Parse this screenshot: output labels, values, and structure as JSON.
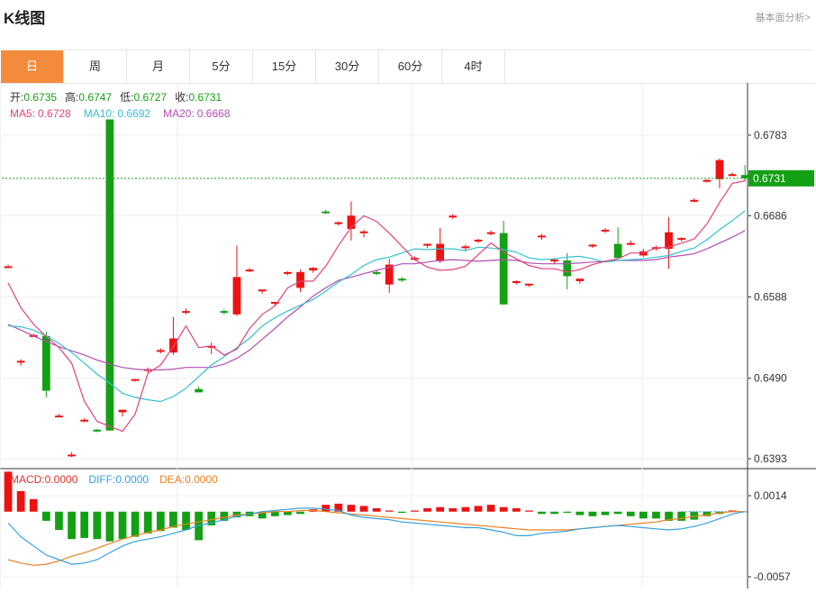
{
  "header": {
    "title": "K线图",
    "more_label": "基本面分析>"
  },
  "tabs": [
    {
      "label": "日",
      "active": true
    },
    {
      "label": "周",
      "active": false
    },
    {
      "label": "月",
      "active": false
    },
    {
      "label": "5分",
      "active": false
    },
    {
      "label": "15分",
      "active": false
    },
    {
      "label": "30分",
      "active": false
    },
    {
      "label": "60分",
      "active": false
    },
    {
      "label": "4时",
      "active": false
    }
  ],
  "chart_data": [
    {
      "type": "candlestick",
      "ohlc_labels": [
        {
          "label": "开:",
          "value": "0.6735"
        },
        {
          "label": "高:",
          "value": "0.6747"
        },
        {
          "label": "低:",
          "value": "0.6727"
        },
        {
          "label": "收:",
          "value": "0.6731"
        }
      ],
      "ma_labels": [
        {
          "label": "MA5:",
          "value": "0.6728",
          "color": "#e0457b"
        },
        {
          "label": "MA10:",
          "value": "0.6692",
          "color": "#35c0d0"
        },
        {
          "label": "MA20:",
          "value": "0.6668",
          "color": "#b34fb3"
        }
      ],
      "y_ticks": [
        "0.6783",
        "0.6686",
        "0.6588",
        "0.6490",
        "0.6393"
      ],
      "ylim": [
        0.6393,
        0.6783
      ],
      "last_price": "0.6731",
      "up_color": "#ee1111",
      "down_color": "#14a014",
      "candles": [
        [
          0.6625,
          0.6627,
          0.6623,
          0.6625
        ],
        [
          0.6509,
          0.6513,
          0.6505,
          0.6511
        ],
        [
          0.6542,
          0.6544,
          0.654,
          0.6542
        ],
        [
          0.6541,
          0.6546,
          0.6467,
          0.6475
        ],
        [
          0.6445,
          0.6447,
          0.6443,
          0.6445
        ],
        [
          0.6398,
          0.6401,
          0.6395,
          0.6398
        ],
        [
          0.644,
          0.6442,
          0.6437,
          0.644
        ],
        [
          0.6428,
          0.6429,
          0.6425,
          0.6427
        ],
        [
          0.6802,
          0.6802,
          0.6427,
          0.6427
        ],
        [
          0.6449,
          0.6452,
          0.6444,
          0.6452
        ],
        [
          0.6488,
          0.6489,
          0.6486,
          0.6489
        ],
        [
          0.6499,
          0.6503,
          0.6497,
          0.6501
        ],
        [
          0.6523,
          0.6526,
          0.652,
          0.6524
        ],
        [
          0.6521,
          0.6564,
          0.6518,
          0.6538
        ],
        [
          0.6571,
          0.6574,
          0.6567,
          0.6571
        ],
        [
          0.6477,
          0.648,
          0.6473,
          0.6473
        ],
        [
          0.6527,
          0.6533,
          0.6519,
          0.6529
        ],
        [
          0.6571,
          0.6573,
          0.6567,
          0.6569
        ],
        [
          0.6567,
          0.665,
          0.6565,
          0.6612
        ],
        [
          0.6621,
          0.6623,
          0.6618,
          0.6621
        ],
        [
          0.6595,
          0.6597,
          0.6592,
          0.6597
        ],
        [
          0.658,
          0.6582,
          0.6577,
          0.6582
        ],
        [
          0.6617,
          0.6619,
          0.6614,
          0.6618
        ],
        [
          0.6599,
          0.6621,
          0.6594,
          0.6618
        ],
        [
          0.662,
          0.6624,
          0.6617,
          0.6623
        ],
        [
          0.6691,
          0.6693,
          0.6688,
          0.669
        ],
        [
          0.6677,
          0.6679,
          0.6674,
          0.6678
        ],
        [
          0.667,
          0.6703,
          0.6656,
          0.6686
        ],
        [
          0.6667,
          0.6669,
          0.666,
          0.6667
        ],
        [
          0.6618,
          0.662,
          0.6614,
          0.6617
        ],
        [
          0.6603,
          0.6634,
          0.6593,
          0.6627
        ],
        [
          0.661,
          0.6612,
          0.6606,
          0.6609
        ],
        [
          0.6635,
          0.6637,
          0.6632,
          0.6635
        ],
        [
          0.665,
          0.6652,
          0.6647,
          0.6652
        ],
        [
          0.6631,
          0.6671,
          0.6629,
          0.6652
        ],
        [
          0.6686,
          0.6688,
          0.6682,
          0.6686
        ],
        [
          0.6649,
          0.6651,
          0.6643,
          0.6649
        ],
        [
          0.6656,
          0.6658,
          0.6653,
          0.6657
        ],
        [
          0.6665,
          0.6668,
          0.6662,
          0.6666
        ],
        [
          0.6665,
          0.668,
          0.6579,
          0.6579
        ],
        [
          0.6606,
          0.6608,
          0.6603,
          0.6607
        ],
        [
          0.6603,
          0.6604,
          0.66,
          0.6604
        ],
        [
          0.6661,
          0.6664,
          0.6657,
          0.6662
        ],
        [
          0.6633,
          0.6635,
          0.6628,
          0.6633
        ],
        [
          0.6632,
          0.6641,
          0.6597,
          0.6613
        ],
        [
          0.6607,
          0.661,
          0.6604,
          0.661
        ],
        [
          0.665,
          0.6652,
          0.6647,
          0.6651
        ],
        [
          0.6668,
          0.6671,
          0.6665,
          0.6669
        ],
        [
          0.6652,
          0.6672,
          0.6638,
          0.6635
        ],
        [
          0.6653,
          0.6656,
          0.665,
          0.6653
        ],
        [
          0.6638,
          0.6646,
          0.6636,
          0.6643
        ],
        [
          0.6647,
          0.665,
          0.6644,
          0.6648
        ],
        [
          0.6646,
          0.6684,
          0.6622,
          0.6666
        ],
        [
          0.6658,
          0.666,
          0.6655,
          0.6659
        ],
        [
          0.6705,
          0.6707,
          0.6702,
          0.6705
        ],
        [
          0.6728,
          0.673,
          0.6726,
          0.6729
        ],
        [
          0.673,
          0.6755,
          0.6719,
          0.6753
        ],
        [
          0.6736,
          0.6738,
          0.6734,
          0.6736
        ],
        [
          0.6735,
          0.6747,
          0.6727,
          0.6731
        ]
      ],
      "ma5": [
        0.6605,
        0.6575,
        0.6555,
        0.654,
        0.6527,
        0.6508,
        0.6462,
        0.6438,
        0.6432,
        0.6426,
        0.6447,
        0.6496,
        0.6506,
        0.6528,
        0.6553,
        0.6527,
        0.6529,
        0.6518,
        0.6525,
        0.655,
        0.6567,
        0.6577,
        0.6599,
        0.6607,
        0.6607,
        0.6625,
        0.665,
        0.6672,
        0.6686,
        0.6679,
        0.6665,
        0.6649,
        0.6633,
        0.6624,
        0.662,
        0.6621,
        0.6625,
        0.6639,
        0.6653,
        0.6642,
        0.6634,
        0.6626,
        0.6622,
        0.6622,
        0.6618,
        0.6621,
        0.6627,
        0.6631,
        0.6634,
        0.6641,
        0.6641,
        0.6647,
        0.6648,
        0.6653,
        0.6658,
        0.6676,
        0.6702,
        0.6725,
        0.6728
      ],
      "ma10": [
        0.6553,
        0.6552,
        0.6548,
        0.6541,
        0.6532,
        0.6521,
        0.6508,
        0.6495,
        0.6484,
        0.6472,
        0.6467,
        0.6464,
        0.6462,
        0.6468,
        0.6478,
        0.6492,
        0.6506,
        0.6516,
        0.6527,
        0.6538,
        0.6553,
        0.6563,
        0.6571,
        0.6578,
        0.6585,
        0.6595,
        0.6606,
        0.6615,
        0.6626,
        0.6633,
        0.6636,
        0.6641,
        0.6646,
        0.6645,
        0.6646,
        0.6646,
        0.6644,
        0.6648,
        0.6647,
        0.6645,
        0.6642,
        0.6635,
        0.6633,
        0.6634,
        0.6636,
        0.6637,
        0.6634,
        0.663,
        0.6632,
        0.6633,
        0.6634,
        0.6636,
        0.6638,
        0.6643,
        0.6647,
        0.6657,
        0.6669,
        0.668,
        0.6692
      ],
      "ma20": [
        0.6555,
        0.6548,
        0.6541,
        0.6534,
        0.6528,
        0.6523,
        0.6518,
        0.6512,
        0.6507,
        0.6503,
        0.6501,
        0.65,
        0.65,
        0.6501,
        0.6503,
        0.6503,
        0.6503,
        0.6507,
        0.6514,
        0.6524,
        0.6537,
        0.655,
        0.6564,
        0.6576,
        0.6589,
        0.6599,
        0.6608,
        0.6612,
        0.6616,
        0.662,
        0.6624,
        0.6628,
        0.6628,
        0.663,
        0.6632,
        0.6633,
        0.6632,
        0.6631,
        0.6632,
        0.6633,
        0.6632,
        0.6629,
        0.6628,
        0.6628,
        0.6628,
        0.6629,
        0.663,
        0.6631,
        0.6632,
        0.6632,
        0.6632,
        0.6633,
        0.6636,
        0.6638,
        0.664,
        0.6646,
        0.6653,
        0.666,
        0.6668
      ]
    },
    {
      "type": "macd",
      "legend": [
        {
          "label": "MACD:",
          "value": "0.0000",
          "color": "#e03030"
        },
        {
          "label": "DIFF:",
          "value": "0.0000",
          "color": "#35a0e0"
        },
        {
          "label": "DEA:",
          "value": "0.0000",
          "color": "#f08020"
        }
      ],
      "y_ticks": [
        "0.0014",
        "-0.0057"
      ],
      "ylim": [
        -0.0057,
        0.0014
      ],
      "hist": [
        0.0035,
        0.0018,
        0.0011,
        -0.0008,
        -0.0016,
        -0.0024,
        -0.0023,
        -0.0024,
        -0.0026,
        -0.0024,
        -0.0022,
        -0.0019,
        -0.0017,
        -0.0014,
        -0.0016,
        -0.0025,
        -0.0012,
        -0.0008,
        -0.0005,
        -0.0004,
        -0.0006,
        -0.0004,
        -0.0003,
        -0.0002,
        0.0002,
        0.0006,
        0.0007,
        0.0006,
        0.0005,
        0.0003,
        0.0001,
        -0.0001,
        0.0001,
        0.0003,
        0.0004,
        0.0003,
        0.0004,
        0.0005,
        0.0006,
        0.0004,
        0.0003,
        0.0001,
        -0.0002,
        -0.0002,
        -0.0001,
        -0.0003,
        -0.0004,
        -0.0003,
        -0.0002,
        -0.0004,
        -0.0006,
        -0.0006,
        -0.0008,
        -0.0008,
        -0.0007,
        -0.0004,
        -0.0002,
        0.0001,
        0.0
      ],
      "diff": [
        -0.001,
        -0.0022,
        -0.003,
        -0.0038,
        -0.0042,
        -0.0046,
        -0.0045,
        -0.0042,
        -0.0036,
        -0.003,
        -0.0026,
        -0.0024,
        -0.0022,
        -0.0019,
        -0.0016,
        -0.0012,
        -0.001,
        -0.0007,
        -0.0004,
        -0.0002,
        0.0,
        0.0001,
        0.0002,
        0.0003,
        0.0003,
        0.0002,
        0.0001,
        -0.0003,
        -0.0005,
        -0.0006,
        -0.0007,
        -0.0009,
        -0.001,
        -0.0011,
        -0.0012,
        -0.0013,
        -0.0014,
        -0.0014,
        -0.0016,
        -0.0018,
        -0.0021,
        -0.0021,
        -0.0019,
        -0.0018,
        -0.0017,
        -0.0015,
        -0.0014,
        -0.0013,
        -0.0012,
        -0.0013,
        -0.0014,
        -0.0015,
        -0.0016,
        -0.0015,
        -0.0013,
        -0.001,
        -0.0006,
        -0.0002,
        0.0
      ],
      "dea": [
        -0.0042,
        -0.0045,
        -0.0047,
        -0.0046,
        -0.0043,
        -0.0039,
        -0.0036,
        -0.0032,
        -0.0028,
        -0.0024,
        -0.0021,
        -0.0018,
        -0.0016,
        -0.0013,
        -0.0011,
        -0.0009,
        -0.0007,
        -0.0005,
        -0.0003,
        -0.0002,
        -0.0001,
        0.0,
        0.0,
        0.0001,
        0.0001,
        0.0,
        -0.0001,
        -0.0002,
        -0.0003,
        -0.0004,
        -0.0005,
        -0.0006,
        -0.0007,
        -0.0008,
        -0.0009,
        -0.001,
        -0.0011,
        -0.0012,
        -0.0013,
        -0.0014,
        -0.0015,
        -0.0016,
        -0.0016,
        -0.0016,
        -0.0016,
        -0.0015,
        -0.0014,
        -0.0013,
        -0.0012,
        -0.0011,
        -0.001,
        -0.0009,
        -0.0007,
        -0.0006,
        -0.0004,
        -0.0003,
        -0.0001,
        0.0,
        0.0
      ]
    }
  ]
}
